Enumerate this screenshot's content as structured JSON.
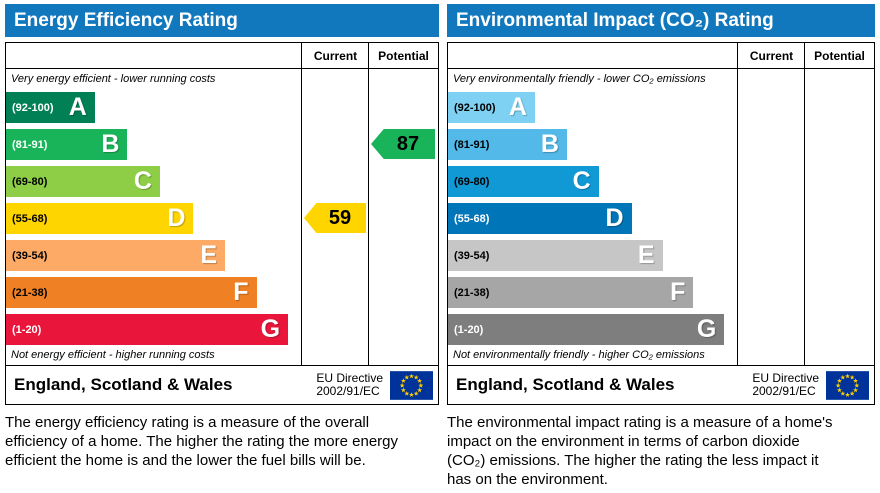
{
  "panels": [
    {
      "title": "Energy Efficiency Rating",
      "header_bg": "#1278be",
      "columns": {
        "current": "Current",
        "potential": "Potential"
      },
      "top_note": "Very energy efficient - lower running costs",
      "bottom_note": "Not energy efficient - higher running costs",
      "bands": [
        {
          "label": "A",
          "range": "(92-100)",
          "color": "#008054",
          "text_color": "#ffffff",
          "width_pct": 30.4
        },
        {
          "label": "B",
          "range": "(81-91)",
          "color": "#19b459",
          "text_color": "#ffffff",
          "width_pct": 41.6
        },
        {
          "label": "C",
          "range": "(69-80)",
          "color": "#8dce46",
          "text_color": "#000000",
          "width_pct": 52.7
        },
        {
          "label": "D",
          "range": "(55-68)",
          "color": "#ffd500",
          "text_color": "#000000",
          "width_pct": 64.2
        },
        {
          "label": "E",
          "range": "(39-54)",
          "color": "#fcaa65",
          "text_color": "#000000",
          "width_pct": 75.0
        },
        {
          "label": "F",
          "range": "(21-38)",
          "color": "#ef8023",
          "text_color": "#000000",
          "width_pct": 85.8
        },
        {
          "label": "G",
          "range": "(1-20)",
          "color": "#e9153b",
          "text_color": "#ffffff",
          "width_pct": 96.6
        }
      ],
      "current": {
        "value": "59",
        "band": "D",
        "band_index": 3,
        "color": "#ffd500"
      },
      "potential": {
        "value": "87",
        "band": "B",
        "band_index": 1,
        "color": "#19b459"
      },
      "footer": {
        "region": "England, Scotland & Wales",
        "directive_line1": "EU Directive",
        "directive_line2": "2002/91/EC"
      },
      "description": "The energy efficiency rating is a measure of the overall efficiency of a home. The higher the rating the more energy efficient the home is and the lower the fuel bills will be."
    },
    {
      "title": "Environmental Impact (CO₂) Rating",
      "header_bg": "#1278be",
      "columns": {
        "current": "Current",
        "potential": "Potential"
      },
      "top_note": "Very environmentally friendly - lower CO₂ emissions",
      "bottom_note": "Not environmentally friendly - higher CO₂ emissions",
      "bands": [
        {
          "label": "A",
          "range": "(92-100)",
          "color": "#7fd1f4",
          "text_color": "#000000",
          "width_pct": 30.4
        },
        {
          "label": "B",
          "range": "(81-91)",
          "color": "#52b9e9",
          "text_color": "#000000",
          "width_pct": 41.6
        },
        {
          "label": "C",
          "range": "(69-80)",
          "color": "#1199d6",
          "text_color": "#000000",
          "width_pct": 52.7
        },
        {
          "label": "D",
          "range": "(55-68)",
          "color": "#0075b8",
          "text_color": "#ffffff",
          "width_pct": 64.2
        },
        {
          "label": "E",
          "range": "(39-54)",
          "color": "#c6c6c6",
          "text_color": "#000000",
          "width_pct": 75.0
        },
        {
          "label": "F",
          "range": "(21-38)",
          "color": "#a6a6a6",
          "text_color": "#000000",
          "width_pct": 85.8
        },
        {
          "label": "G",
          "range": "(1-20)",
          "color": "#7e7e7e",
          "text_color": "#ffffff",
          "width_pct": 96.6
        }
      ],
      "current": null,
      "potential": null,
      "footer": {
        "region": "England, Scotland & Wales",
        "directive_line1": "EU Directive",
        "directive_line2": "2002/91/EC"
      },
      "description": "The environmental impact rating is a measure of a home's impact on the environment in terms of carbon dioxide (CO₂) emissions. The higher the rating the less impact it has on the environment."
    }
  ],
  "chart_data": [
    {
      "type": "bar",
      "title": "Energy Efficiency Rating",
      "categories": [
        "A (92-100)",
        "B (81-91)",
        "C (69-80)",
        "D (55-68)",
        "E (39-54)",
        "F (21-38)",
        "G (1-20)"
      ],
      "bands": [
        {
          "label": "A",
          "min": 92,
          "max": 100
        },
        {
          "label": "B",
          "min": 81,
          "max": 91
        },
        {
          "label": "C",
          "min": 69,
          "max": 80
        },
        {
          "label": "D",
          "min": 55,
          "max": 68
        },
        {
          "label": "E",
          "min": 39,
          "max": 54
        },
        {
          "label": "F",
          "min": 21,
          "max": 38
        },
        {
          "label": "G",
          "min": 1,
          "max": 20
        }
      ],
      "current": 59,
      "current_band": "D",
      "potential": 87,
      "potential_band": "B",
      "top_annotation": "Very energy efficient - lower running costs",
      "bottom_annotation": "Not energy efficient - higher running costs",
      "region": "England, Scotland & Wales",
      "directive": "EU Directive 2002/91/EC"
    },
    {
      "type": "bar",
      "title": "Environmental Impact (CO₂) Rating",
      "categories": [
        "A (92-100)",
        "B (81-91)",
        "C (69-80)",
        "D (55-68)",
        "E (39-54)",
        "F (21-38)",
        "G (1-20)"
      ],
      "bands": [
        {
          "label": "A",
          "min": 92,
          "max": 100
        },
        {
          "label": "B",
          "min": 81,
          "max": 91
        },
        {
          "label": "C",
          "min": 69,
          "max": 80
        },
        {
          "label": "D",
          "min": 55,
          "max": 68
        },
        {
          "label": "E",
          "min": 39,
          "max": 54
        },
        {
          "label": "F",
          "min": 21,
          "max": 38
        },
        {
          "label": "G",
          "min": 1,
          "max": 20
        }
      ],
      "current": null,
      "current_band": null,
      "potential": null,
      "potential_band": null,
      "top_annotation": "Very environmentally friendly - lower CO₂ emissions",
      "bottom_annotation": "Not environmentally friendly - higher CO₂ emissions",
      "region": "England, Scotland & Wales",
      "directive": "EU Directive 2002/91/EC"
    }
  ]
}
